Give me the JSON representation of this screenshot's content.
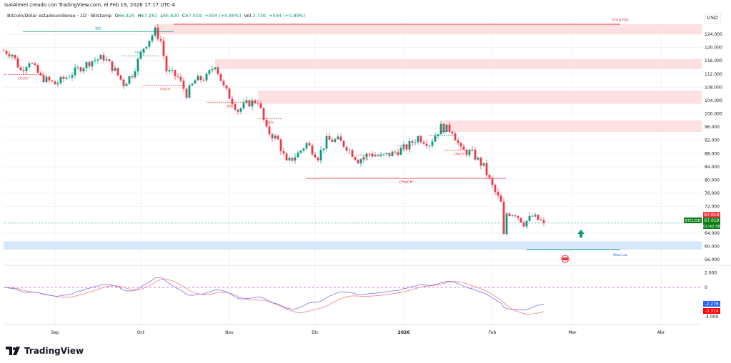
{
  "header": {
    "attribution": "IsaiAlexei creado con TradingView.com, el Feb 19, 2026 17:17 UTC-4",
    "symbol_title": "Bitcoin/Dólar estadounidense · 1D · Bitstamp",
    "open_label": "O",
    "open": "66.425",
    "high_label": "H",
    "high": "67.281",
    "low_label": "L",
    "low": "65.620",
    "close_label": "C",
    "close": "67.019",
    "change": "+594 (+0,89%)",
    "vol_label": "Vol.",
    "vol": "2,73K",
    "vol_change": "+594 (+0,89%)"
  },
  "currency": "USD",
  "ticker_tag": "BTCUSD",
  "last_price": "67.019",
  "countdown": "02:42:56",
  "footer": {
    "brand": "TradingView"
  },
  "colors": {
    "up": "#089981",
    "down": "#f23645",
    "supply_zone": "#fde0e2",
    "demand_zone": "#d6e6fb",
    "osc_fast": "#7b73f0",
    "osc_slow": "#f77c80"
  },
  "chart_data": {
    "type": "candlestick",
    "yticks": [
      "124.000",
      "120.000",
      "116.000",
      "112.000",
      "108.000",
      "104.000",
      "100.000",
      "96.000",
      "92.000",
      "88.000",
      "84.000",
      "80.000",
      "76.000",
      "72.000",
      "64.000",
      "60.000",
      "56.000"
    ],
    "ytick_values": [
      124000,
      120000,
      116000,
      112000,
      108000,
      104000,
      100000,
      96000,
      92000,
      88000,
      84000,
      80000,
      76000,
      72000,
      64000,
      60000,
      56000
    ],
    "xticks": [
      {
        "label": "Sep",
        "date": "2025-09-01"
      },
      {
        "label": "Oct",
        "date": "2025-10-01"
      },
      {
        "label": "Nov",
        "date": "2025-11-01"
      },
      {
        "label": "Dic",
        "date": "2025-12-01"
      },
      {
        "label": "2026",
        "date": "2026-01-01"
      },
      {
        "label": "Feb",
        "date": "2026-02-01"
      },
      {
        "label": "Mar",
        "date": "2026-03-01"
      },
      {
        "label": "Abr",
        "date": "2026-04-01"
      }
    ],
    "closes_approx": [
      [
        "2025-08-14",
        119000
      ],
      [
        "2025-08-17",
        118000
      ],
      [
        "2025-08-20",
        113000
      ],
      [
        "2025-08-23",
        116000
      ],
      [
        "2025-08-27",
        111000
      ],
      [
        "2025-09-01",
        109000
      ],
      [
        "2025-09-05",
        111000
      ],
      [
        "2025-09-10",
        114000
      ],
      [
        "2025-09-14",
        116000
      ],
      [
        "2025-09-18",
        117000
      ],
      [
        "2025-09-22",
        113000
      ],
      [
        "2025-09-25",
        109000
      ],
      [
        "2025-09-28",
        112000
      ],
      [
        "2025-10-02",
        120000
      ],
      [
        "2025-10-06",
        125000
      ],
      [
        "2025-10-08",
        122000
      ],
      [
        "2025-10-10",
        113000
      ],
      [
        "2025-10-14",
        111000
      ],
      [
        "2025-10-17",
        106000
      ],
      [
        "2025-10-20",
        110000
      ],
      [
        "2025-10-24",
        111000
      ],
      [
        "2025-10-27",
        115000
      ],
      [
        "2025-10-30",
        108000
      ],
      [
        "2025-11-04",
        101000
      ],
      [
        "2025-11-07",
        103000
      ],
      [
        "2025-11-11",
        104000
      ],
      [
        "2025-11-14",
        95000
      ],
      [
        "2025-11-18",
        92000
      ],
      [
        "2025-11-21",
        85000
      ],
      [
        "2025-11-25",
        88000
      ],
      [
        "2025-11-28",
        91000
      ],
      [
        "2025-12-02",
        87000
      ],
      [
        "2025-12-05",
        92000
      ],
      [
        "2025-12-09",
        92000
      ],
      [
        "2025-12-12",
        90000
      ],
      [
        "2025-12-16",
        86000
      ],
      [
        "2025-12-20",
        88000
      ],
      [
        "2025-12-24",
        87000
      ],
      [
        "2025-12-28",
        88000
      ],
      [
        "2026-01-02",
        90000
      ],
      [
        "2026-01-06",
        93000
      ],
      [
        "2026-01-10",
        91000
      ],
      [
        "2026-01-14",
        96000
      ],
      [
        "2026-01-18",
        95000
      ],
      [
        "2026-01-21",
        89000
      ],
      [
        "2026-01-25",
        88000
      ],
      [
        "2026-01-29",
        84000
      ],
      [
        "2026-02-01",
        78000
      ],
      [
        "2026-02-04",
        73000
      ],
      [
        "2026-02-05",
        63000
      ],
      [
        "2026-02-06",
        70000
      ],
      [
        "2026-02-09",
        70000
      ],
      [
        "2026-02-12",
        67000
      ],
      [
        "2026-02-15",
        69000
      ],
      [
        "2026-02-19",
        67019
      ]
    ],
    "zones": [
      {
        "type": "supply",
        "from": "2025-10-06",
        "low": 124000,
        "high": 127000,
        "label": "Strong High"
      },
      {
        "type": "supply",
        "from": "2025-10-27",
        "low": 113500,
        "high": 116500
      },
      {
        "type": "supply",
        "from": "2025-11-11",
        "low": 103000,
        "high": 107000
      },
      {
        "type": "supply",
        "from": "2026-01-14",
        "low": 94500,
        "high": 98000
      },
      {
        "type": "demand",
        "from": "2025-08-14",
        "low": 59000,
        "high": 61500,
        "label": "Weak Low"
      }
    ],
    "annotations": [
      {
        "text": "BOS",
        "price": 124800,
        "color": "up"
      },
      {
        "text": "CHoCH",
        "price": 117500,
        "color": "up"
      },
      {
        "text": "CHoCH",
        "price": 111800,
        "color": "down"
      },
      {
        "text": "CHoCH",
        "price": 108600,
        "color": "down"
      },
      {
        "text": "BOS",
        "price": 103500,
        "color": "down"
      },
      {
        "text": "BOS",
        "price": 98500,
        "color": "down"
      },
      {
        "text": "CHoCH",
        "price": 80500,
        "color": "down"
      },
      {
        "text": "BOS",
        "price": 87500,
        "color": "down"
      },
      {
        "text": "CHoCH",
        "price": 90500,
        "color": "down"
      },
      {
        "text": "BOS",
        "price": 93500,
        "color": "up"
      },
      {
        "text": "CHoCH",
        "price": 89000,
        "color": "down"
      }
    ],
    "oscillator": {
      "yticks": [
        "2.000",
        "0",
        "-4.000"
      ],
      "ytick_values": [
        2000,
        0,
        -4000
      ],
      "fast_last": "-2.276",
      "slow_last": "-3.314"
    }
  }
}
